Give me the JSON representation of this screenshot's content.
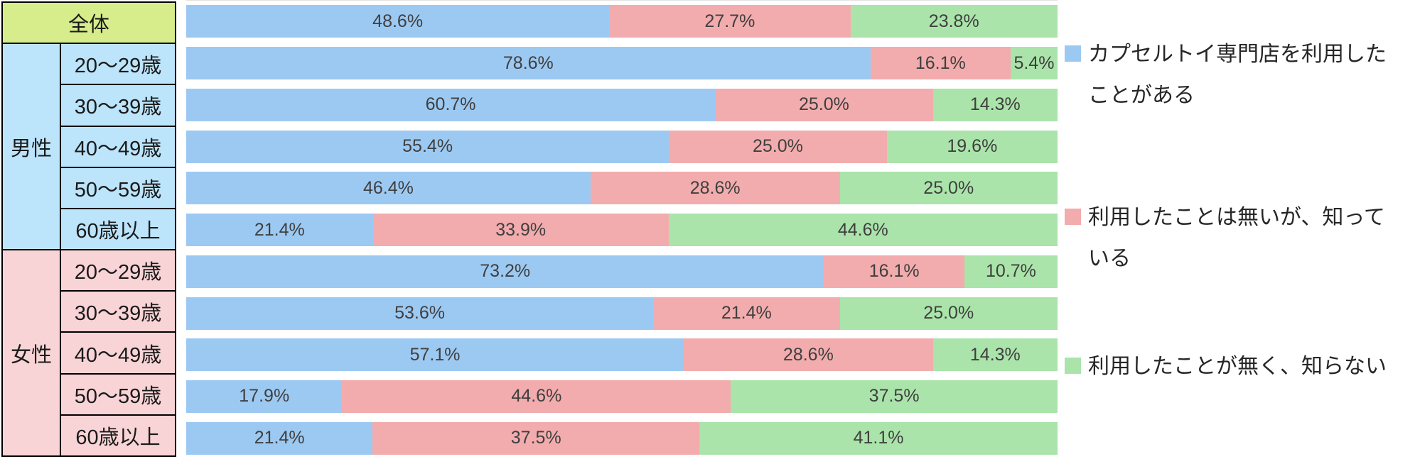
{
  "chart_data": {
    "type": "bar",
    "orientation": "horizontal",
    "stacked": true,
    "unit": "%",
    "xlim": [
      0,
      100
    ],
    "grid": false,
    "legend_position": "right",
    "series": [
      {
        "name": "カプセルトイ専門店を利用したことがある",
        "color": "#9CC9F2"
      },
      {
        "name": "利用したことは無いが、知っている",
        "color": "#F2ACAD"
      },
      {
        "name": "利用したことが無く、知らない",
        "color": "#AAE4AA"
      }
    ],
    "rows": [
      {
        "group": "全体",
        "age": "全体",
        "values": [
          48.6,
          27.7,
          23.8
        ]
      },
      {
        "group": "男性",
        "age": "20〜29歳",
        "values": [
          78.6,
          16.1,
          5.4
        ]
      },
      {
        "group": "男性",
        "age": "30〜39歳",
        "values": [
          60.7,
          25.0,
          14.3
        ]
      },
      {
        "group": "男性",
        "age": "40〜49歳",
        "values": [
          55.4,
          25.0,
          19.6
        ]
      },
      {
        "group": "男性",
        "age": "50〜59歳",
        "values": [
          46.4,
          28.6,
          25.0
        ]
      },
      {
        "group": "男性",
        "age": "60歳以上",
        "values": [
          21.4,
          33.9,
          44.6
        ]
      },
      {
        "group": "女性",
        "age": "20〜29歳",
        "values": [
          73.2,
          16.1,
          10.7
        ]
      },
      {
        "group": "女性",
        "age": "30〜39歳",
        "values": [
          53.6,
          21.4,
          25.0
        ]
      },
      {
        "group": "女性",
        "age": "40〜49歳",
        "values": [
          57.1,
          28.6,
          14.3
        ]
      },
      {
        "group": "女性",
        "age": "50〜59歳",
        "values": [
          17.9,
          44.6,
          37.5
        ]
      },
      {
        "group": "女性",
        "age": "60歳以上",
        "values": [
          21.4,
          37.5,
          41.1
        ]
      }
    ]
  },
  "side_table": {
    "overall_label": "全体",
    "overall_color": "#D7EC8B",
    "groups": [
      {
        "name": "男性",
        "color": "#BCE4FB",
        "ages": [
          "20〜29歳",
          "30〜39歳",
          "40〜49歳",
          "50〜59歳",
          "60歳以上"
        ]
      },
      {
        "name": "女性",
        "color": "#F9D4D6",
        "ages": [
          "20〜29歳",
          "30〜39歳",
          "40〜49歳",
          "50〜59歳",
          "60歳以上"
        ]
      }
    ]
  },
  "legend": {
    "items": [
      {
        "label": "カプセルトイ専門店を利用したことがある",
        "color": "#9CC9F2"
      },
      {
        "label": "利用したことは無いが、知っている",
        "color": "#F2ACAD"
      },
      {
        "label": "利用したことが無く、知らない",
        "color": "#AAE4AA"
      }
    ]
  }
}
